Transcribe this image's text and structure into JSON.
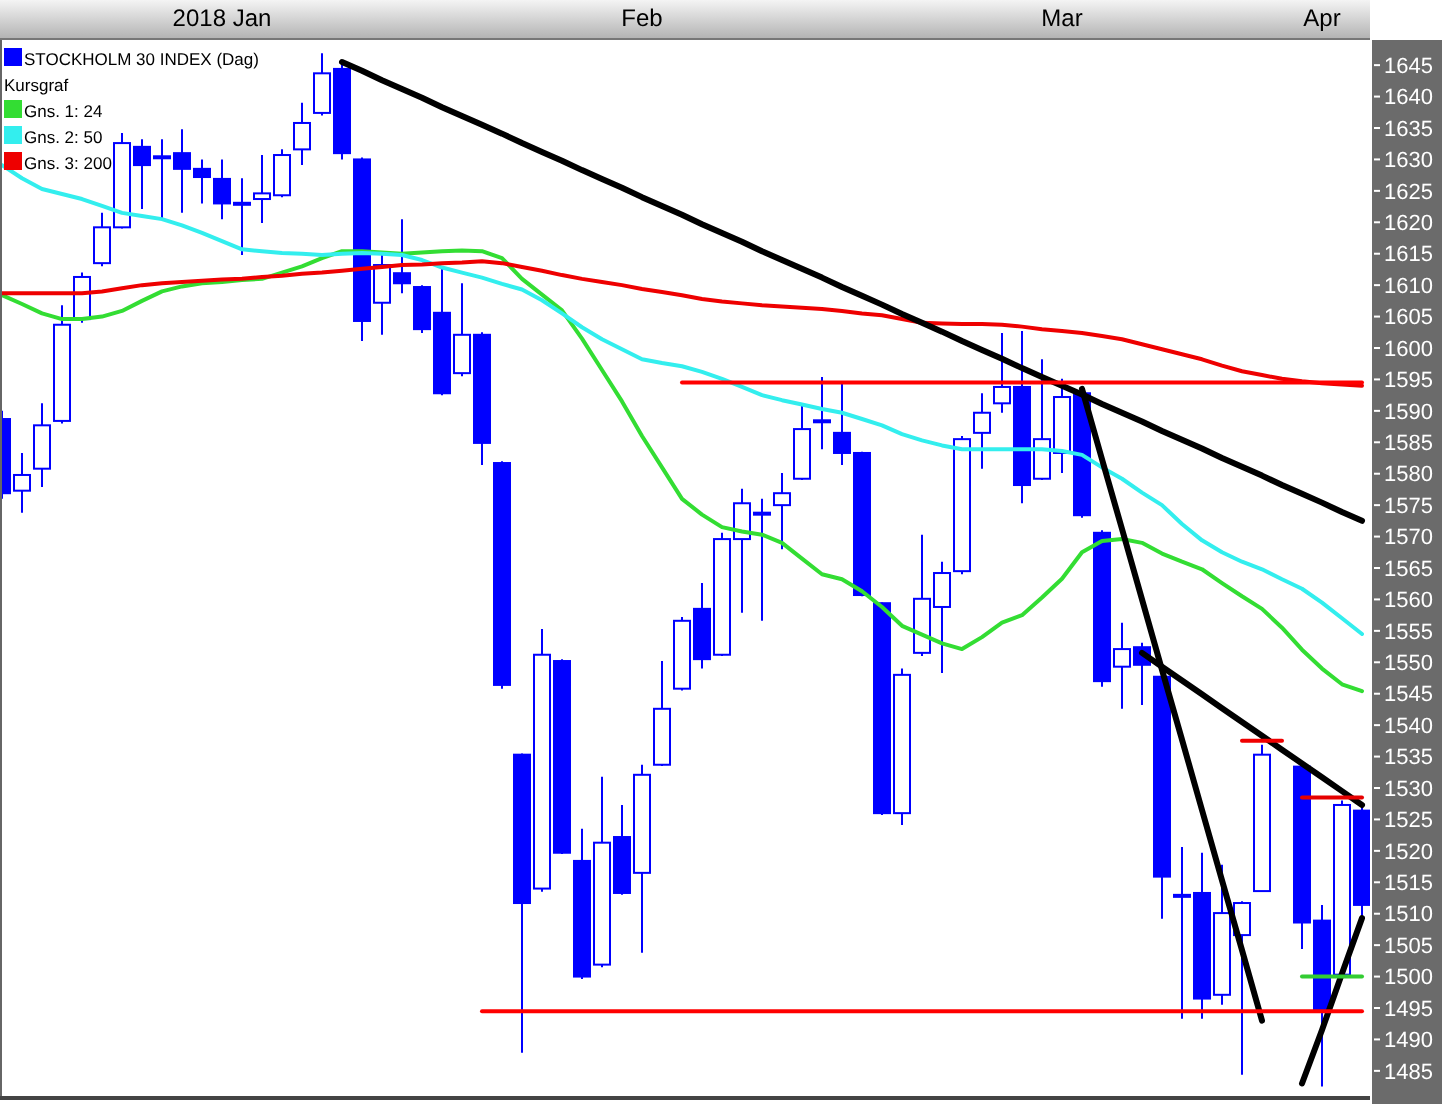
{
  "chart_data": {
    "type": "candlestick",
    "legend": "top left",
    "legend_title": "Kursgraf",
    "categories": [
      null,
      null,
      null,
      null,
      null,
      null,
      null,
      null,
      null,
      null,
      null,
      "2018 Jan",
      null,
      null,
      null,
      null,
      null,
      null,
      null,
      null,
      null,
      null,
      null,
      null,
      null,
      null,
      null,
      null,
      null,
      null,
      null,
      null,
      "Feb",
      null,
      null,
      null,
      null,
      null,
      null,
      null,
      null,
      null,
      null,
      null,
      null,
      null,
      null,
      null,
      null,
      null,
      null,
      null,
      null,
      "Mar",
      null,
      null,
      null,
      null,
      null,
      null,
      null,
      null,
      null,
      null,
      null,
      null,
      "Apr",
      null,
      null
    ],
    "ylim": [
      1481,
      1649
    ],
    "yticks": [
      1485,
      1490,
      1495,
      1500,
      1505,
      1510,
      1515,
      1520,
      1525,
      1530,
      1535,
      1540,
      1545,
      1550,
      1555,
      1560,
      1565,
      1570,
      1575,
      1580,
      1585,
      1590,
      1595,
      1600,
      1605,
      1610,
      1615,
      1620,
      1625,
      1630,
      1635,
      1640,
      1645
    ],
    "series": [
      {
        "type": "candlestick",
        "name": "STOCKHOLM 30 INDEX (Dag)",
        "color": "#0000ff",
        "ohlc": [
          [
            1588.7,
            1590,
            1576,
            1576.9
          ],
          [
            1577.3,
            1583.3,
            1573.8,
            1579.8
          ],
          [
            1580.8,
            1591.2,
            1577.9,
            1587.7
          ],
          [
            1588.4,
            1606.8,
            1588,
            1603.7
          ],
          [
            1604.6,
            1612,
            1604,
            1611.3
          ],
          [
            1613.5,
            1621.5,
            1613,
            1619.2
          ],
          [
            1619.2,
            1634.2,
            1619,
            1632.6
          ],
          [
            1632,
            1633.2,
            1622.1,
            1629.1
          ],
          [
            1630.5,
            1633.2,
            1620.5,
            1630.3
          ],
          [
            1631,
            1634.8,
            1621.5,
            1628.5
          ],
          [
            1628.5,
            1630,
            1623,
            1627.2
          ],
          [
            1626.9,
            1630,
            1620.5,
            1623
          ],
          [
            1623.1,
            1627,
            1614.8,
            1623
          ],
          [
            1623.7,
            1630.7,
            1619.9,
            1624.6
          ],
          [
            1624.3,
            1631.6,
            1624,
            1630.7
          ],
          [
            1631.6,
            1639,
            1629.1,
            1635.8
          ],
          [
            1637.4,
            1646.9,
            1637,
            1643.7
          ],
          [
            1644.4,
            1645.3,
            1630,
            1631
          ],
          [
            1630,
            1630.3,
            1601.1,
            1604.3
          ],
          [
            1607.2,
            1614.8,
            1602.1,
            1613.2
          ],
          [
            1611.9,
            1620.5,
            1608.7,
            1610.3
          ],
          [
            1609.7,
            1610,
            1602.4,
            1603
          ],
          [
            1605.6,
            1612.6,
            1592.5,
            1592.8
          ],
          [
            1596,
            1610.3,
            1595.5,
            1602.1
          ],
          [
            1602.1,
            1602.5,
            1581.4,
            1584.9
          ],
          [
            1581.7,
            1582,
            1545.8,
            1546.4
          ],
          [
            1535.3,
            1535.5,
            1487.9,
            1511.7
          ],
          [
            1514,
            1555.3,
            1513.5,
            1551.2
          ],
          [
            1550.2,
            1550.5,
            1519.5,
            1519.7
          ],
          [
            1518.4,
            1523.5,
            1499.6,
            1500
          ],
          [
            1501.9,
            1531.8,
            1501.5,
            1521.3
          ],
          [
            1522.2,
            1527.3,
            1513,
            1513.3
          ],
          [
            1516.5,
            1533.7,
            1503.8,
            1532.1
          ],
          [
            1533.7,
            1550.2,
            1533.5,
            1542.6
          ],
          [
            1545.8,
            1557.2,
            1545.5,
            1556.6
          ],
          [
            1558.5,
            1562.6,
            1549,
            1550.5
          ],
          [
            1551.2,
            1570.6,
            1551,
            1569.6
          ],
          [
            1569.6,
            1577.6,
            1557.9,
            1575.3
          ],
          [
            1573.8,
            1576,
            1556.6,
            1573.7
          ],
          [
            1575,
            1580.1,
            1568,
            1576.9
          ],
          [
            1579.2,
            1591.2,
            1579,
            1587.1
          ],
          [
            1588.5,
            1595.4,
            1583.9,
            1588.4
          ],
          [
            1586.5,
            1594.7,
            1581.4,
            1583.3
          ],
          [
            1583.3,
            1583.5,
            1560.5,
            1560.7
          ],
          [
            1559.4,
            1559.5,
            1525.7,
            1526
          ],
          [
            1526,
            1549,
            1524.1,
            1548
          ],
          [
            1551.5,
            1570.3,
            1551,
            1560.1
          ],
          [
            1558.8,
            1566,
            1548.3,
            1564.2
          ],
          [
            1564.5,
            1586,
            1564,
            1585.5
          ],
          [
            1586.5,
            1592.8,
            1580.8,
            1589.7
          ],
          [
            1591.2,
            1602.4,
            1589.7,
            1593.8
          ],
          [
            1593.8,
            1602.7,
            1575.3,
            1578.2
          ],
          [
            1579.2,
            1598.2,
            1579,
            1585.5
          ],
          [
            1583.3,
            1595.1,
            1580.1,
            1592.2
          ],
          [
            1592.8,
            1593,
            1573,
            1573.4
          ],
          [
            1570.6,
            1571,
            1546.1,
            1547
          ],
          [
            1549.3,
            1556.3,
            1542.6,
            1552.1
          ],
          [
            1552.4,
            1553.1,
            1543.2,
            1549.6
          ],
          [
            1547.7,
            1548,
            1509.2,
            1515.9
          ],
          [
            1513,
            1520.6,
            1493.3,
            1512.9
          ],
          [
            1513.3,
            1519.7,
            1493.3,
            1496.5
          ],
          [
            1497.1,
            1517.8,
            1495.5,
            1510.1
          ],
          [
            1506.6,
            1512,
            1484.4,
            1511.7
          ],
          [
            1513.6,
            1536.9,
            1513.5,
            1535.3
          ],
          null,
          [
            1533.4,
            1534,
            1504.4,
            1508.6
          ],
          [
            1508.9,
            1511.4,
            1482.5,
            1494.6
          ],
          [
            1500.3,
            1528,
            1500,
            1527.3
          ],
          [
            1526.4,
            1527,
            1508.9,
            1511.4
          ]
        ]
      },
      {
        "type": "line",
        "name": "Gns. 1: 24",
        "color": "#33dd33",
        "values": [
          1608.4,
          1607,
          1605.5,
          1604.6,
          1604.6,
          1605,
          1605.9,
          1607.5,
          1609,
          1609.8,
          1610.3,
          1610.5,
          1610.8,
          1611,
          1612,
          1613,
          1614.3,
          1615.4,
          1615.4,
          1615.2,
          1615,
          1615.2,
          1615.4,
          1615.5,
          1615.4,
          1614.3,
          1611,
          1608.5,
          1606,
          1601.5,
          1596.5,
          1591.5,
          1586,
          1581,
          1576,
          1573.5,
          1571.5,
          1570.8,
          1570.3,
          1569,
          1566.5,
          1564,
          1563.2,
          1561.3,
          1558.8,
          1555.8,
          1554.4,
          1553,
          1552.1,
          1554,
          1556.3,
          1557.5,
          1560.3,
          1563.3,
          1567.5,
          1569.3,
          1569.6,
          1569,
          1567.3,
          1566,
          1564.8,
          1562.6,
          1560.5,
          1558.5,
          1555.5,
          1552,
          1549,
          1546.5,
          1545.4
        ]
      },
      {
        "type": "line",
        "name": "Gns. 2: 50",
        "color": "#33eeee",
        "values": [
          1629.1,
          1627,
          1625.3,
          1624.5,
          1623.7,
          1622.6,
          1621.5,
          1621,
          1620.5,
          1619.5,
          1618.3,
          1617,
          1615.7,
          1615.4,
          1615.1,
          1615,
          1614.8,
          1615,
          1615.1,
          1615,
          1614.8,
          1614,
          1612.8,
          1612,
          1611.2,
          1610.2,
          1609.3,
          1607.6,
          1605.5,
          1603.3,
          1601.4,
          1599.8,
          1598.2,
          1597.6,
          1597.1,
          1596.2,
          1595.1,
          1593.8,
          1592.5,
          1591.7,
          1591,
          1590.3,
          1589.7,
          1588.7,
          1587.7,
          1586.3,
          1585.3,
          1584.5,
          1583.9,
          1583.9,
          1583.9,
          1583.9,
          1583.9,
          1583.6,
          1583,
          1581,
          1579.2,
          1577,
          1575,
          1572,
          1569.4,
          1567.5,
          1566,
          1564.8,
          1563.2,
          1561.7,
          1559.5,
          1557,
          1554.5
        ]
      },
      {
        "type": "line",
        "name": "Gns. 3: 200",
        "color": "#ee0000",
        "values": [
          1608.7,
          1608.7,
          1608.7,
          1608.7,
          1608.7,
          1609,
          1609.5,
          1610,
          1610.3,
          1610.5,
          1610.7,
          1610.9,
          1611,
          1611.3,
          1611.5,
          1611.8,
          1612,
          1612.3,
          1612.6,
          1612.9,
          1613.2,
          1613.3,
          1613.5,
          1613.6,
          1613.8,
          1613.5,
          1612.9,
          1612.3,
          1611.6,
          1611,
          1610.5,
          1610,
          1609.4,
          1608.9,
          1608.4,
          1607.8,
          1607.4,
          1607.1,
          1606.8,
          1606.6,
          1606.4,
          1606.2,
          1605.9,
          1605.5,
          1605.2,
          1604.6,
          1604,
          1603.9,
          1603.8,
          1603.8,
          1603.7,
          1603.4,
          1603,
          1602.7,
          1602.4,
          1601.9,
          1601.4,
          1600.6,
          1599.8,
          1599,
          1598.2,
          1597.2,
          1596.3,
          1595.7,
          1595.1,
          1594.7,
          1594.4,
          1594.2,
          1594
        ]
      },
      {
        "type": "line",
        "color": "#000000",
        "values": [
          null,
          null,
          null,
          null,
          null,
          null,
          null,
          null,
          null,
          null,
          null,
          null,
          null,
          null,
          null,
          null,
          null,
          1645.5,
          1644.1,
          1642.6,
          1641.2,
          1639.8,
          1638.3,
          1636.9,
          1635.5,
          1634.1,
          1632.6,
          1631.2,
          1629.8,
          1628.3,
          1626.9,
          1625.5,
          1624,
          1622.6,
          1621.2,
          1619.7,
          1618.3,
          1616.9,
          1615.4,
          1614,
          1612.6,
          1611.2,
          1609.7,
          1608.3,
          1606.9,
          1605.4,
          1604,
          1602.6,
          1601.1,
          1599.7,
          1598.3,
          1596.8,
          1595.4,
          1594,
          1592.6,
          1591.1,
          1589.7,
          1588.3,
          1586.8,
          1585.4,
          1584,
          1582.5,
          1581.1,
          1579.7,
          1578.2,
          1576.8,
          1575.4,
          1573.9,
          1572.5
        ]
      },
      {
        "type": "line",
        "color": "#000000",
        "values": [
          null,
          null,
          null,
          null,
          null,
          null,
          null,
          null,
          null,
          null,
          null,
          null,
          null,
          null,
          null,
          null,
          null,
          null,
          null,
          null,
          null,
          null,
          null,
          null,
          null,
          null,
          null,
          null,
          null,
          null,
          null,
          null,
          null,
          null,
          null,
          null,
          null,
          null,
          null,
          null,
          null,
          null,
          null,
          null,
          null,
          null,
          null,
          null,
          null,
          null,
          null,
          null,
          null,
          null,
          1593.5,
          1582.3,
          1571.2,
          1560,
          1548.8,
          1537.7,
          1526.5,
          1515.3,
          1504.2,
          1493,
          null,
          null,
          null,
          null,
          null
        ]
      },
      {
        "type": "line",
        "color": "#000000",
        "values": [
          null,
          null,
          null,
          null,
          null,
          null,
          null,
          null,
          null,
          null,
          null,
          null,
          null,
          null,
          null,
          null,
          null,
          null,
          null,
          null,
          null,
          null,
          null,
          null,
          null,
          null,
          null,
          null,
          null,
          null,
          null,
          null,
          null,
          null,
          null,
          null,
          null,
          null,
          null,
          null,
          null,
          null,
          null,
          null,
          null,
          null,
          null,
          null,
          null,
          null,
          null,
          null,
          null,
          null,
          null,
          null,
          null,
          1551.5,
          1549.3,
          1547.1,
          1544.9,
          1542.7,
          1540.5,
          1538.3,
          1536.1,
          1533.9,
          1531.7,
          1529.5,
          1527.3
        ]
      },
      {
        "type": "line",
        "color": "#000000",
        "values": [
          null,
          null,
          null,
          null,
          null,
          null,
          null,
          null,
          null,
          null,
          null,
          null,
          null,
          null,
          null,
          null,
          null,
          null,
          null,
          null,
          null,
          null,
          null,
          null,
          null,
          null,
          null,
          null,
          null,
          null,
          null,
          null,
          null,
          null,
          null,
          null,
          null,
          null,
          null,
          null,
          null,
          null,
          null,
          null,
          null,
          null,
          null,
          null,
          null,
          null,
          null,
          null,
          null,
          null,
          null,
          null,
          null,
          null,
          null,
          null,
          null,
          null,
          null,
          null,
          null,
          1483,
          1491.5,
          1500.5,
          1509.3
        ]
      },
      {
        "type": "line",
        "color": "#ff0000",
        "values": [
          null,
          null,
          null,
          null,
          null,
          null,
          null,
          null,
          null,
          null,
          null,
          null,
          null,
          null,
          null,
          null,
          null,
          null,
          null,
          null,
          null,
          null,
          null,
          null,
          null,
          null,
          null,
          null,
          null,
          null,
          null,
          null,
          null,
          null,
          1594.5,
          1594.5,
          1594.5,
          1594.5,
          1594.5,
          1594.5,
          1594.5,
          1594.5,
          1594.5,
          1594.5,
          1594.5,
          1594.5,
          1594.5,
          1594.5,
          1594.5,
          1594.5,
          1594.5,
          1594.5,
          1594.5,
          1594.5,
          1594.5,
          1594.5,
          1594.5,
          1594.5,
          1594.5,
          1594.5,
          1594.5,
          1594.5,
          1594.5,
          1594.5,
          1594.5,
          1594.5,
          1594.5,
          1594.5,
          1594.5
        ]
      },
      {
        "type": "line",
        "color": "#ff0000",
        "values": [
          null,
          null,
          null,
          null,
          null,
          null,
          null,
          null,
          null,
          null,
          null,
          null,
          null,
          null,
          null,
          null,
          null,
          null,
          null,
          null,
          null,
          null,
          null,
          null,
          1494.5,
          1494.5,
          1494.5,
          1494.5,
          1494.5,
          1494.5,
          1494.5,
          1494.5,
          1494.5,
          1494.5,
          1494.5,
          1494.5,
          1494.5,
          1494.5,
          1494.5,
          1494.5,
          1494.5,
          1494.5,
          1494.5,
          1494.5,
          1494.5,
          1494.5,
          1494.5,
          1494.5,
          1494.5,
          1494.5,
          1494.5,
          1494.5,
          1494.5,
          1494.5,
          1494.5,
          1494.5,
          1494.5,
          1494.5,
          1494.5,
          1494.5,
          1494.5,
          1494.5,
          1494.5,
          1494.5,
          1494.5,
          1494.5,
          1494.5,
          1494.5,
          1494.5
        ]
      },
      {
        "type": "line",
        "color": "#f00000",
        "values": [
          null,
          null,
          null,
          null,
          null,
          null,
          null,
          null,
          null,
          null,
          null,
          null,
          null,
          null,
          null,
          null,
          null,
          null,
          null,
          null,
          null,
          null,
          null,
          null,
          null,
          null,
          null,
          null,
          null,
          null,
          null,
          null,
          null,
          null,
          null,
          null,
          null,
          null,
          null,
          null,
          null,
          null,
          null,
          null,
          null,
          null,
          null,
          null,
          null,
          null,
          null,
          null,
          null,
          null,
          null,
          null,
          null,
          null,
          null,
          null,
          null,
          null,
          1537.5,
          1537.5,
          1537.5,
          null,
          null,
          null,
          null
        ]
      },
      {
        "type": "line",
        "color": "#e60000",
        "values": [
          null,
          null,
          null,
          null,
          null,
          null,
          null,
          null,
          null,
          null,
          null,
          null,
          null,
          null,
          null,
          null,
          null,
          null,
          null,
          null,
          null,
          null,
          null,
          null,
          null,
          null,
          null,
          null,
          null,
          null,
          null,
          null,
          null,
          null,
          null,
          null,
          null,
          null,
          null,
          null,
          null,
          null,
          null,
          null,
          null,
          null,
          null,
          null,
          null,
          null,
          null,
          null,
          null,
          null,
          null,
          null,
          null,
          null,
          null,
          null,
          null,
          null,
          null,
          null,
          null,
          1528.5,
          1528.5,
          1528.5,
          1528.5
        ]
      },
      {
        "type": "line",
        "color": "#33cc33",
        "values": [
          null,
          null,
          null,
          null,
          null,
          null,
          null,
          null,
          null,
          null,
          null,
          null,
          null,
          null,
          null,
          null,
          null,
          null,
          null,
          null,
          null,
          null,
          null,
          null,
          null,
          null,
          null,
          null,
          null,
          null,
          null,
          null,
          null,
          null,
          null,
          null,
          null,
          null,
          null,
          null,
          null,
          null,
          null,
          null,
          null,
          null,
          null,
          null,
          null,
          null,
          null,
          null,
          null,
          null,
          null,
          null,
          null,
          null,
          null,
          null,
          null,
          null,
          null,
          null,
          null,
          1500,
          1500,
          1500,
          1500
        ]
      }
    ]
  }
}
